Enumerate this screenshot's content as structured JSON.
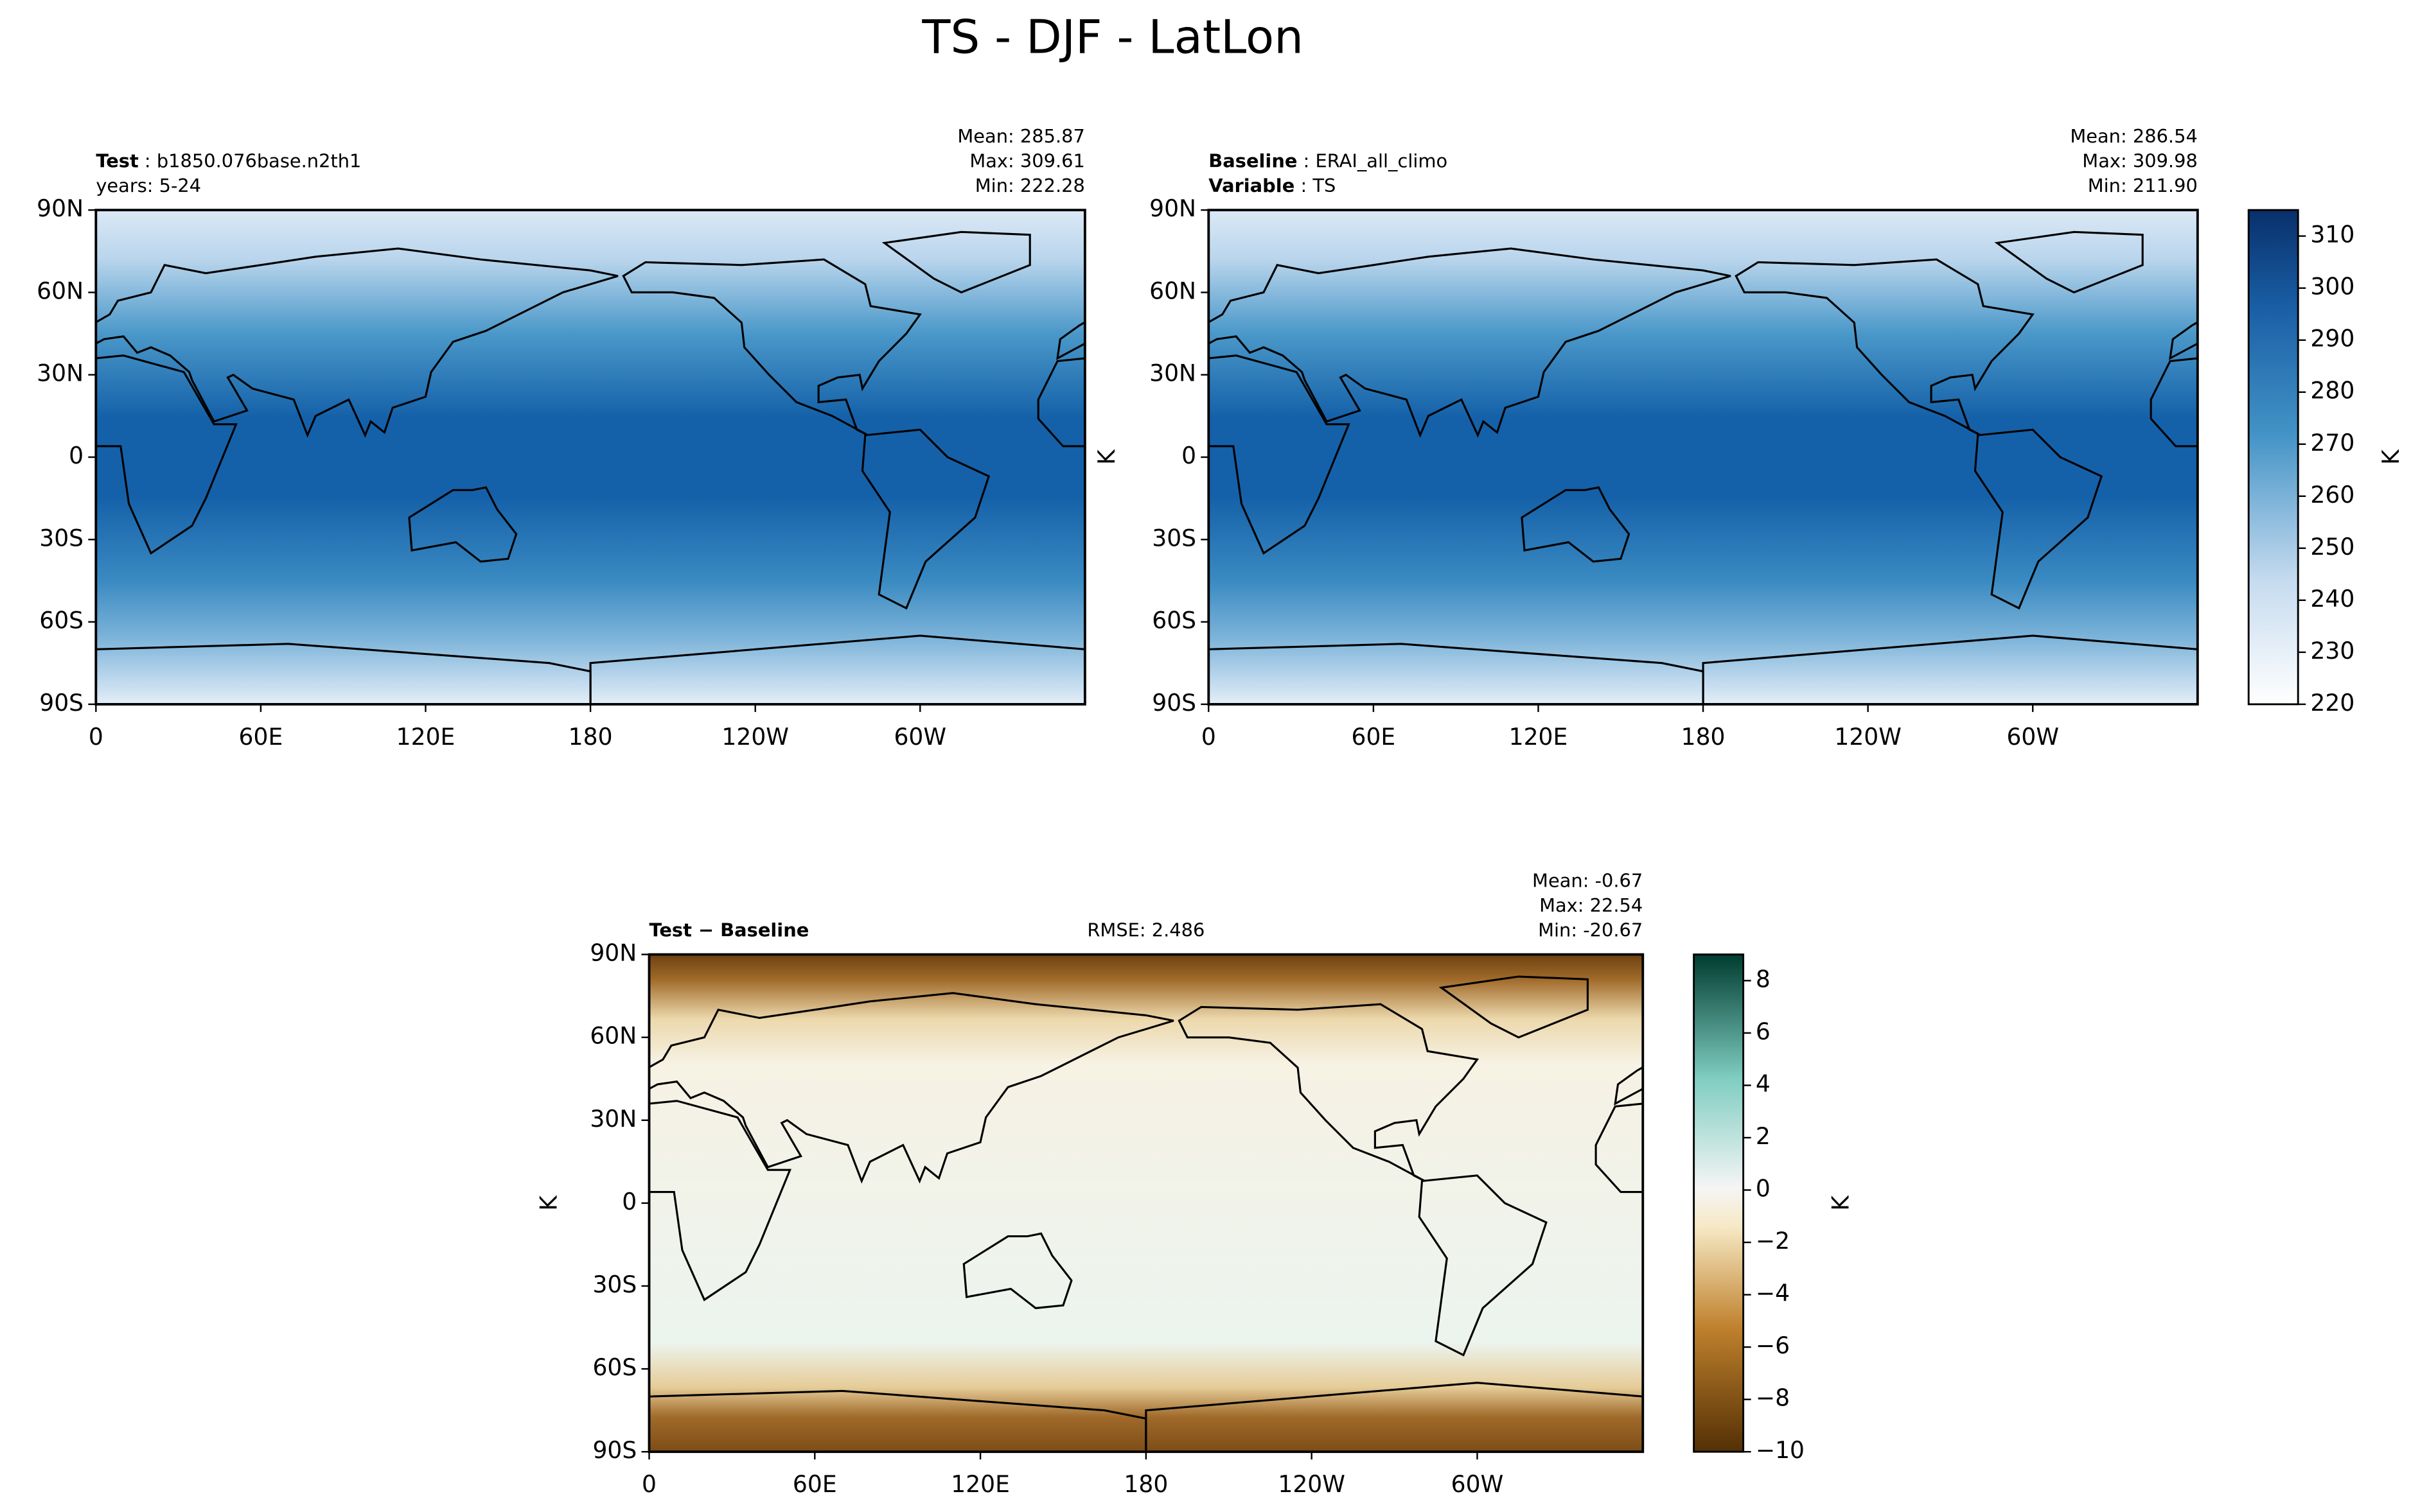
{
  "title": "TS - DJF - LatLon",
  "chart_data": [
    {
      "type": "map",
      "left_lines": [
        {
          "bold": "Test",
          "rest": " : b1850.076base.n2th1"
        },
        {
          "bold": "",
          "rest": "years: 5-24"
        }
      ],
      "stats": [
        "Mean: 285.87",
        "Max: 309.61",
        "Min: 222.28"
      ],
      "xlim": [
        0,
        360
      ],
      "ylim": [
        -90,
        90
      ],
      "xticks": [
        0,
        {
          "value": 60,
          "label": "60E"
        },
        {
          "value": 120,
          "label": "120E"
        },
        180,
        {
          "value": 240,
          "label": "120W"
        },
        {
          "value": 300,
          "label": "60W"
        }
      ],
      "yticks": [
        {
          "value": -90,
          "label": "90S"
        },
        {
          "value": -60,
          "label": "60S"
        },
        {
          "value": -30,
          "label": "30S"
        },
        0,
        {
          "value": 30,
          "label": "30N"
        },
        {
          "value": 60,
          "label": "60N"
        },
        {
          "value": 90,
          "label": "90N"
        }
      ]
    },
    {
      "type": "map",
      "left_lines": [
        {
          "bold": "Baseline",
          "rest": " : ERAI_all_climo"
        },
        {
          "bold": "Variable",
          "rest": " : TS"
        }
      ],
      "stats": [
        "Mean: 286.54",
        "Max: 309.98",
        "Min: 211.90"
      ],
      "ylabel": "K",
      "xlim": [
        0,
        360
      ],
      "ylim": [
        -90,
        90
      ],
      "xticks": [
        0,
        {
          "value": 60,
          "label": "60E"
        },
        {
          "value": 120,
          "label": "120E"
        },
        180,
        {
          "value": 240,
          "label": "120W"
        },
        {
          "value": 300,
          "label": "60W"
        }
      ],
      "yticks": [
        {
          "value": -90,
          "label": "90S"
        },
        {
          "value": -60,
          "label": "60S"
        },
        {
          "value": -30,
          "label": "30S"
        },
        0,
        {
          "value": 30,
          "label": "30N"
        },
        {
          "value": 60,
          "label": "60N"
        },
        {
          "value": 90,
          "label": "90N"
        }
      ],
      "colorbar": {
        "label": "K",
        "clim": [
          220,
          315
        ],
        "ticks": [
          220,
          230,
          240,
          250,
          260,
          270,
          280,
          290,
          300,
          310
        ]
      }
    },
    {
      "type": "map",
      "left_lines": [
        {
          "bold": "Test − Baseline",
          "rest": ""
        }
      ],
      "center_text": "RMSE: 2.486",
      "stats": [
        "Mean: -0.67",
        "Max: 22.54",
        "Min: -20.67"
      ],
      "ylabel": "K",
      "xlim": [
        0,
        360
      ],
      "ylim": [
        -90,
        90
      ],
      "xticks": [
        0,
        {
          "value": 60,
          "label": "60E"
        },
        {
          "value": 120,
          "label": "120E"
        },
        180,
        {
          "value": 240,
          "label": "120W"
        },
        {
          "value": 300,
          "label": "60W"
        }
      ],
      "yticks": [
        {
          "value": -90,
          "label": "90S"
        },
        {
          "value": -60,
          "label": "60S"
        },
        {
          "value": -30,
          "label": "30S"
        },
        0,
        {
          "value": 30,
          "label": "30N"
        },
        {
          "value": 60,
          "label": "60N"
        },
        {
          "value": 90,
          "label": "90N"
        }
      ],
      "colorbar": {
        "label": "K",
        "clim": [
          -10,
          9
        ],
        "ticks": [
          {
            "value": -10,
            "label": "−10"
          },
          {
            "value": -8,
            "label": "−8"
          },
          {
            "value": -6,
            "label": "−6"
          },
          {
            "value": -4,
            "label": "−4"
          },
          {
            "value": -2,
            "label": "−2"
          },
          0,
          2,
          4,
          6,
          8
        ]
      }
    }
  ]
}
